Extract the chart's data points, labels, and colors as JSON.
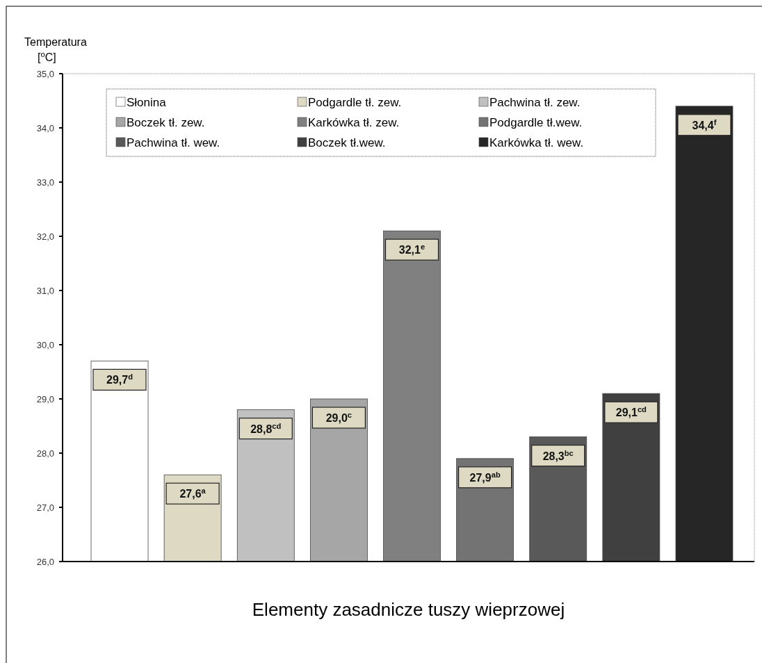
{
  "chart_data": {
    "type": "bar",
    "xlabel": "Elementy zasadnicze tuszy wieprzowej",
    "ylabel": "Temperatura [$^{o}$C]",
    "categories": [
      null,
      null,
      null,
      null,
      null,
      null,
      null,
      null,
      null
    ],
    "series": [
      {
        "name": "Słonina",
        "color": "#ffffff",
        "values": [
          29.7,
          null,
          null,
          null,
          null,
          null,
          null,
          null,
          null
        ],
        "value_labels": [
          "29,7$^{d}$",
          null,
          null,
          null,
          null,
          null,
          null,
          null,
          null
        ]
      },
      {
        "name": "Podgardle tł. zew.",
        "color": "#ddd9c3",
        "values": [
          null,
          27.6,
          null,
          null,
          null,
          null,
          null,
          null,
          null
        ],
        "value_labels": [
          null,
          "27,6$^{a}$",
          null,
          null,
          null,
          null,
          null,
          null,
          null
        ]
      },
      {
        "name": "Pachwina tł. zew.",
        "color": "#c0c0c0",
        "values": [
          null,
          null,
          28.8,
          null,
          null,
          null,
          null,
          null,
          null
        ],
        "value_labels": [
          null,
          null,
          "28,8$^{cd}$",
          null,
          null,
          null,
          null,
          null,
          null
        ]
      },
      {
        "name": "Boczek  tł. zew.",
        "color": "#a6a6a6",
        "values": [
          null,
          null,
          null,
          29.0,
          null,
          null,
          null,
          null,
          null
        ],
        "value_labels": [
          null,
          null,
          null,
          "29,0$^{c}$",
          null,
          null,
          null,
          null,
          null
        ]
      },
      {
        "name": "Karkówka tł. zew.",
        "color": "#808080",
        "values": [
          null,
          null,
          null,
          null,
          32.1,
          null,
          null,
          null,
          null
        ],
        "value_labels": [
          null,
          null,
          null,
          null,
          "32,1$^{e}$",
          null,
          null,
          null,
          null
        ]
      },
      {
        "name": "Podgardle tł.wew.",
        "color": "#737373",
        "values": [
          null,
          null,
          null,
          null,
          null,
          27.9,
          null,
          null,
          null
        ],
        "value_labels": [
          null,
          null,
          null,
          null,
          null,
          "27,9$^{ab}$",
          null,
          null,
          null
        ]
      },
      {
        "name": "Pachwina tł. wew.",
        "color": "#595959",
        "values": [
          null,
          null,
          null,
          null,
          null,
          null,
          28.3,
          null,
          null
        ],
        "value_labels": [
          null,
          null,
          null,
          null,
          null,
          null,
          "28,3$^{bc}$",
          null,
          null
        ]
      },
      {
        "name": "Boczek  tł.wew.",
        "color": "#404040",
        "values": [
          null,
          null,
          null,
          null,
          null,
          null,
          null,
          29.1,
          null
        ],
        "value_labels": [
          null,
          null,
          null,
          null,
          null,
          null,
          null,
          "29,1$^{cd}$",
          null
        ]
      },
      {
        "name": "Karkówka tł. wew.",
        "color": "#262626",
        "values": [
          null,
          null,
          null,
          null,
          null,
          null,
          null,
          null,
          34.4
        ],
        "value_labels": [
          null,
          null,
          null,
          null,
          null,
          null,
          null,
          null,
          "34,4$^{f}$"
        ]
      }
    ],
    "ylim": [
      26,
      35
    ],
    "yticks": [
      {
        "value": 26,
        "label": "26,0"
      },
      {
        "value": 27,
        "label": "27,0"
      },
      {
        "value": 28,
        "label": "28,0"
      },
      {
        "value": 29,
        "label": "29,0"
      },
      {
        "value": 30,
        "label": "30,0"
      },
      {
        "value": 31,
        "label": "31,0"
      },
      {
        "value": 32,
        "label": "32,0"
      },
      {
        "value": 33,
        "label": "33,0"
      },
      {
        "value": 34,
        "label": "34,0"
      },
      {
        "value": 35,
        "label": "35,0"
      }
    ],
    "grid": false,
    "legend": "top"
  }
}
